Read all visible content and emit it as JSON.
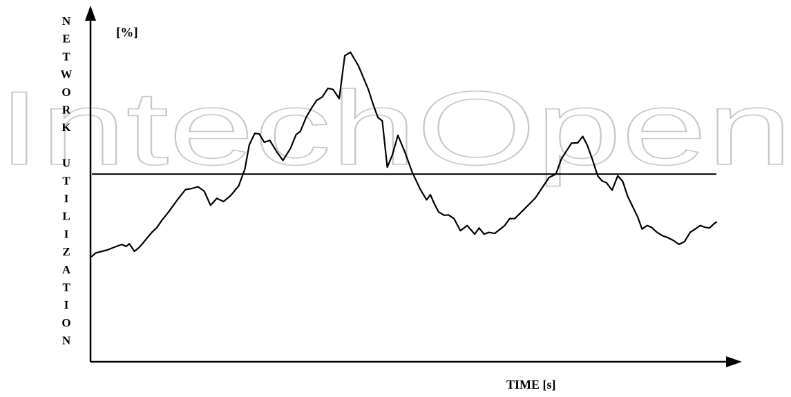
{
  "watermark": {
    "text": "IntechOpen",
    "color": "#c8c8c8"
  },
  "chart_data": {
    "type": "line",
    "title": "",
    "ylabel_letters": [
      "N",
      "E",
      "T",
      "W",
      "O",
      "R",
      "K",
      "",
      "U",
      "T",
      "I",
      "L",
      "I",
      "Z",
      "A",
      "T",
      "I",
      "O",
      "N"
    ],
    "y_unit": "[%]",
    "xlabel": "TIME [s]",
    "ylim": [
      0,
      100
    ],
    "xlim": [
      0,
      100
    ],
    "grid": false,
    "threshold": {
      "y": 54.5
    },
    "series": [
      {
        "color": "#000000",
        "x": [
          0.0,
          0.6,
          1.2,
          2.5,
          3.6,
          4.8,
          5.5,
          6.0,
          6.8,
          7.5,
          8.1,
          8.9,
          9.6,
          10.4,
          11.2,
          12.3,
          13.7,
          15.0,
          16.0,
          17.0,
          18.0,
          19.0,
          20.0,
          21.1,
          22.2,
          23.5,
          24.5,
          25.2,
          26.1,
          26.8,
          27.6,
          28.5,
          29.6,
          30.6,
          31.8,
          32.7,
          33.4,
          34.3,
          35.2,
          36.0,
          36.9,
          37.8,
          38.6,
          39.6,
          40.5,
          41.4,
          42.7,
          44.3,
          45.0,
          45.8,
          46.5,
          47.3,
          48.1,
          49.0,
          50.1,
          51.3,
          52.6,
          53.6,
          54.2,
          54.8,
          55.5,
          56.4,
          57.1,
          58.0,
          59.0,
          60.1,
          61.3,
          62.0,
          62.8,
          63.6,
          64.5,
          65.4,
          66.1,
          66.9,
          67.7,
          68.8,
          69.9,
          71.0,
          72.1,
          73.2,
          74.3,
          75.2,
          76.1,
          76.8,
          77.8,
          78.6,
          79.3,
          80.2,
          81.0,
          81.7,
          82.4,
          83.3,
          84.2,
          85.0,
          85.8,
          86.6,
          87.4,
          88.1,
          88.9,
          89.6,
          90.5,
          91.4,
          92.2,
          93.1,
          94.0,
          94.9,
          95.8,
          96.6,
          97.4,
          98.2,
          98.9,
          99.6,
          100.0
        ],
        "y": [
          30.5,
          31.5,
          31.8,
          32.4,
          33.2,
          34.0,
          33.4,
          34.2,
          32.0,
          33.0,
          34.2,
          36.0,
          37.5,
          38.9,
          41.0,
          43.5,
          47.0,
          50.0,
          50.3,
          50.8,
          49.5,
          45.4,
          47.4,
          46.5,
          48.2,
          51.0,
          56.0,
          63.0,
          66.4,
          66.2,
          63.8,
          64.3,
          61.0,
          58.5,
          62.0,
          66.0,
          67.0,
          71.0,
          73.8,
          76.0,
          77.0,
          79.5,
          79.2,
          76.5,
          89.0,
          90.0,
          86.0,
          79.0,
          75.0,
          71.0,
          70.0,
          56.5,
          60.0,
          65.8,
          61.0,
          55.0,
          50.0,
          47.0,
          48.5,
          46.0,
          43.5,
          42.5,
          42.6,
          41.5,
          38.0,
          39.5,
          37.0,
          38.8,
          37.0,
          37.5,
          37.2,
          38.5,
          39.5,
          41.5,
          41.5,
          43.5,
          45.5,
          47.5,
          50.5,
          53.5,
          54.5,
          59.0,
          61.5,
          63.5,
          63.6,
          65.5,
          63.0,
          58.5,
          54.0,
          52.5,
          52.0,
          49.8,
          54.0,
          52.4,
          48.0,
          45.0,
          42.0,
          38.5,
          39.5,
          39.0,
          37.5,
          36.5,
          36.0,
          35.2,
          34.0,
          34.8,
          37.5,
          38.5,
          39.5,
          39.0,
          38.8,
          40.0,
          40.5
        ]
      }
    ]
  }
}
